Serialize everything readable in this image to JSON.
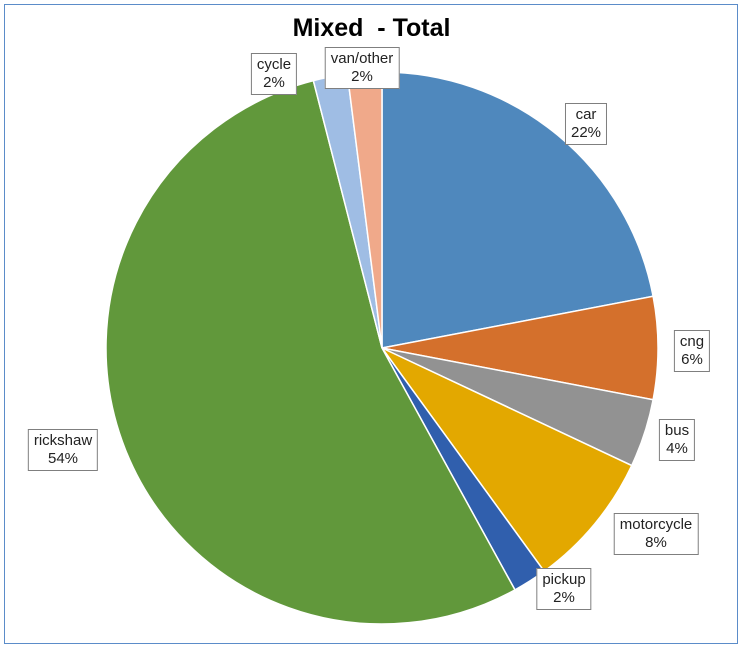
{
  "chart_data": {
    "type": "pie",
    "title": "Mixed  - Total",
    "slices": [
      {
        "label": "car",
        "value": 22,
        "value_label": "22%",
        "color": "#4f88bd"
      },
      {
        "label": "cng",
        "value": 6,
        "value_label": "6%",
        "color": "#d4702c"
      },
      {
        "label": "bus",
        "value": 4,
        "value_label": "4%",
        "color": "#929292"
      },
      {
        "label": "motorcycle",
        "value": 8,
        "value_label": "8%",
        "color": "#e3a800"
      },
      {
        "label": "pickup",
        "value": 2,
        "value_label": "2%",
        "color": "#305fad"
      },
      {
        "label": "rickshaw",
        "value": 54,
        "value_label": "54%",
        "color": "#61983b"
      },
      {
        "label": "cycle",
        "value": 2,
        "value_label": "2%",
        "color": "#9fbde4"
      },
      {
        "label": "van/other",
        "value": 2,
        "value_label": "2%",
        "color": "#f0a98a"
      }
    ],
    "start_direction": "top",
    "direction": "clockwise",
    "legend": "none",
    "data_labels": "outside-boxed"
  }
}
